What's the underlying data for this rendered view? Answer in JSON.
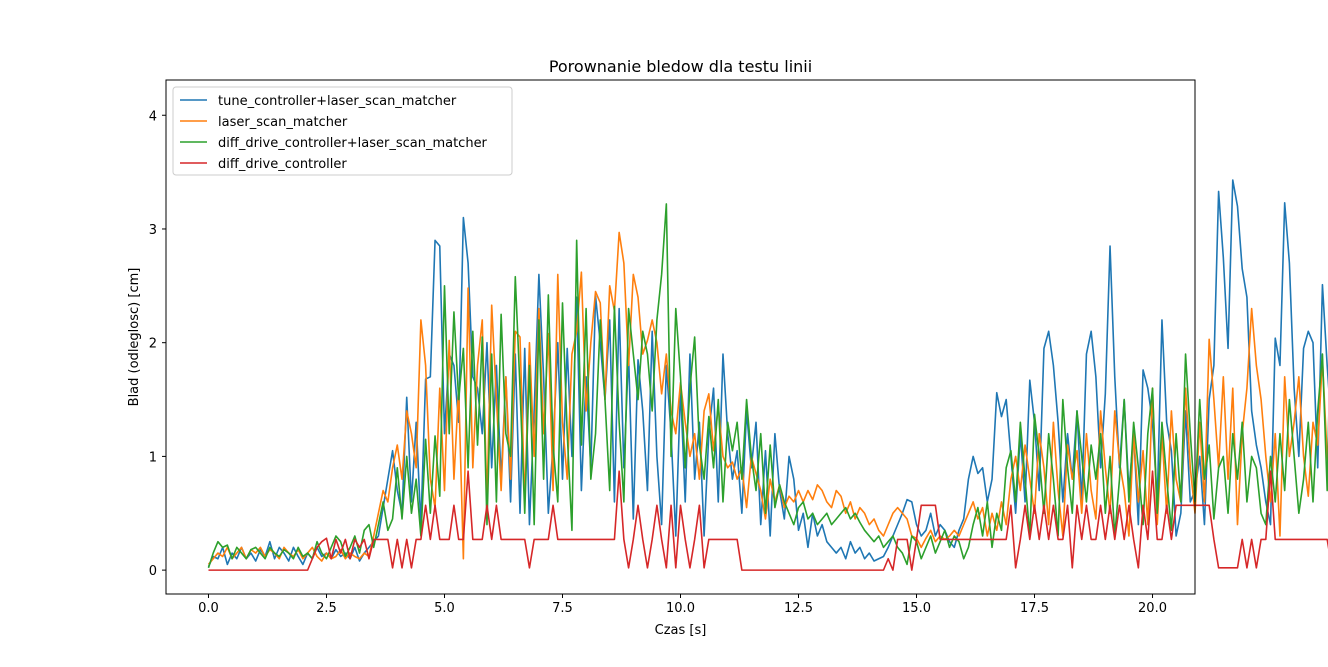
{
  "chart_data": {
    "type": "line",
    "title": "Porownanie bledow dla testu linii",
    "xlabel": "Czas [s]",
    "ylabel": "Blad (odleglosc) [cm]",
    "xlim": [
      -0.9,
      20.9
    ],
    "ylim": [
      -0.21,
      4.31
    ],
    "xticks": [
      0.0,
      2.5,
      5.0,
      7.5,
      10.0,
      12.5,
      15.0,
      17.5,
      20.0
    ],
    "xtick_labels": [
      "0.0",
      "2.5",
      "5.0",
      "7.5",
      "10.0",
      "12.5",
      "15.0",
      "17.5",
      "20.0"
    ],
    "yticks": [
      0,
      1,
      2,
      3,
      4
    ],
    "ytick_labels": [
      "0",
      "1",
      "2",
      "3",
      "4"
    ],
    "grid": false,
    "legend_position": "top-left",
    "x_start": 0.0,
    "x_step": 0.1,
    "series": [
      {
        "name": "tune_controller+laser_scan_matcher",
        "color": "#1f77b4",
        "values": [
          0.03,
          0.12,
          0.1,
          0.2,
          0.05,
          0.15,
          0.1,
          0.2,
          0.1,
          0.15,
          0.08,
          0.18,
          0.12,
          0.25,
          0.1,
          0.2,
          0.15,
          0.08,
          0.2,
          0.12,
          0.05,
          0.15,
          0.1,
          0.2,
          0.12,
          0.15,
          0.1,
          0.18,
          0.12,
          0.15,
          0.1,
          0.2,
          0.08,
          0.15,
          0.2,
          0.25,
          0.3,
          0.55,
          0.8,
          1.05,
          0.7,
          0.5,
          1.52,
          0.6,
          1.3,
          0.4,
          1.68,
          1.7,
          2.9,
          2.85,
          1.2,
          1.9,
          1.8,
          1.3,
          3.1,
          2.7,
          1.7,
          1.6,
          1.2,
          2.0,
          0.9,
          1.8,
          0.8,
          1.7,
          0.6,
          1.9,
          0.5,
          1.95,
          0.4,
          1.4,
          2.6,
          1.7,
          0.5,
          1.1,
          2.0,
          0.8,
          1.95,
          1.0,
          2.4,
          0.7,
          1.7,
          0.9,
          2.41,
          2.0,
          1.5,
          2.2,
          0.6,
          2.3,
          0.9,
          1.9,
          0.45,
          1.85,
          1.4,
          0.7,
          2.1,
          1.0,
          0.4,
          1.8,
          1.2,
          0.3,
          1.6,
          0.6,
          1.9,
          0.8,
          1.3,
          0.3,
          1.2,
          1.6,
          0.6,
          1.9,
          1.2,
          0.8,
          1.05,
          0.5,
          1.4,
          0.9,
          1.3,
          0.4,
          1.05,
          0.3,
          1.2,
          0.7,
          0.45,
          1.0,
          0.8,
          0.35,
          0.5,
          0.2,
          0.5,
          0.3,
          0.4,
          0.25,
          0.2,
          0.15,
          0.2,
          0.1,
          0.25,
          0.15,
          0.2,
          0.1,
          0.15,
          0.08,
          0.1,
          0.12,
          0.2,
          0.3,
          0.4,
          0.5,
          0.62,
          0.6,
          0.4,
          0.3,
          0.35,
          0.5,
          0.3,
          0.4,
          0.35,
          0.25,
          0.2,
          0.35,
          0.45,
          0.8,
          1.0,
          0.85,
          0.9,
          0.6,
          0.8,
          1.56,
          1.35,
          1.5,
          1.0,
          0.5,
          1.2,
          0.6,
          1.67,
          1.3,
          0.7,
          1.95,
          2.1,
          1.8,
          1.3,
          0.6,
          1.2,
          0.8,
          1.4,
          0.6,
          1.9,
          2.1,
          1.7,
          0.9,
          1.55,
          2.85,
          1.7,
          0.9,
          1.5,
          0.7,
          1.2,
          0.4,
          1.76,
          1.6,
          1.3,
          0.6,
          2.2,
          1.3,
          1.05,
          0.3,
          0.5,
          1.4,
          0.6,
          0.7,
          1.0,
          0.4,
          1.5,
          1.8,
          3.33,
          2.75,
          1.95,
          3.43,
          3.2,
          2.65,
          2.4,
          1.4,
          1.1,
          0.9,
          0.6,
          0.4,
          2.04,
          1.8,
          3.23,
          2.7,
          1.6,
          1.0,
          1.95,
          2.1,
          2.0,
          0.9,
          2.51,
          1.8,
          1.2,
          2.71,
          2.6,
          4.1,
          3.6,
          3.37,
          2.78,
          2.5,
          2.2,
          1.8,
          3.26,
          2.9,
          2.55
        ]
      },
      {
        "name": "laser_scan_matcher",
        "color": "#ff7f0e",
        "values": [
          0.05,
          0.1,
          0.15,
          0.12,
          0.2,
          0.1,
          0.15,
          0.2,
          0.1,
          0.18,
          0.15,
          0.2,
          0.12,
          0.18,
          0.15,
          0.1,
          0.2,
          0.15,
          0.12,
          0.18,
          0.1,
          0.15,
          0.2,
          0.12,
          0.08,
          0.15,
          0.1,
          0.12,
          0.18,
          0.1,
          0.15,
          0.12,
          0.1,
          0.15,
          0.12,
          0.3,
          0.5,
          0.7,
          0.6,
          0.9,
          1.1,
          0.8,
          1.4,
          1.2,
          0.9,
          2.2,
          1.8,
          0.8,
          0.55,
          1.6,
          0.7,
          2.02,
          0.8,
          1.6,
          0.1,
          2.48,
          0.9,
          1.8,
          2.2,
          0.6,
          2.33,
          1.5,
          0.7,
          1.7,
          0.8,
          2.1,
          2.05,
          0.6,
          2.0,
          1.0,
          2.3,
          1.2,
          2.08,
          0.7,
          2.6,
          1.3,
          0.8,
          1.9,
          2.1,
          2.62,
          1.4,
          2.0,
          2.45,
          2.35,
          1.5,
          2.5,
          2.28,
          2.97,
          2.7,
          1.8,
          2.6,
          2.4,
          1.9,
          2.02,
          2.2,
          2.0,
          1.55,
          1.9,
          1.4,
          1.2,
          1.65,
          1.3,
          1.0,
          1.2,
          0.8,
          1.4,
          1.55,
          1.05,
          1.44,
          1.0,
          0.9,
          0.95,
          0.8,
          0.9,
          0.55,
          1.0,
          0.85,
          0.7,
          0.45,
          0.8,
          0.6,
          0.75,
          0.55,
          0.65,
          0.6,
          0.7,
          0.6,
          0.7,
          0.62,
          0.75,
          0.7,
          0.6,
          0.55,
          0.7,
          0.65,
          0.5,
          0.6,
          0.45,
          0.55,
          0.5,
          0.4,
          0.45,
          0.35,
          0.3,
          0.4,
          0.5,
          0.55,
          0.5,
          0.45,
          0.3,
          0.28,
          0.2,
          0.28,
          0.35,
          0.25,
          0.3,
          0.27,
          0.3,
          0.35,
          0.3,
          0.4,
          0.5,
          0.6,
          0.45,
          0.55,
          0.3,
          0.5,
          0.35,
          0.6,
          0.4,
          0.8,
          1.0,
          0.7,
          1.1,
          0.8,
          0.5,
          1.2,
          0.9,
          0.4,
          1.3,
          0.7,
          0.3,
          1.1,
          0.8,
          1.05,
          0.5,
          1.2,
          0.7,
          0.45,
          1.4,
          0.9,
          0.5,
          1.4,
          0.95,
          0.7,
          0.3,
          1.2,
          0.6,
          1.05,
          0.4,
          1.6,
          0.4,
          1.2,
          0.5,
          1.4,
          0.8,
          0.6,
          1.6,
          0.9,
          0.5,
          1.3,
          0.6,
          2.03,
          1.5,
          0.9,
          1.7,
          0.8,
          1.6,
          0.4,
          1.2,
          1.6,
          2.3,
          1.8,
          1.5,
          1.0,
          0.6,
          1.2,
          0.3,
          1.7,
          1.0,
          1.3,
          1.7,
          1.0,
          0.65,
          1.3,
          1.1,
          1.85,
          1.0,
          0.6,
          1.4,
          1.8,
          0.9,
          0.6,
          2.3,
          1.5,
          1.2,
          1.0,
          0.9
        ]
      },
      {
        "name": "diff_drive_controller+laser_scan_matcher",
        "color": "#2ca02c",
        "values": [
          0.02,
          0.15,
          0.25,
          0.2,
          0.22,
          0.1,
          0.2,
          0.15,
          0.1,
          0.18,
          0.2,
          0.15,
          0.1,
          0.2,
          0.15,
          0.12,
          0.18,
          0.15,
          0.1,
          0.2,
          0.12,
          0.15,
          0.1,
          0.25,
          0.15,
          0.1,
          0.2,
          0.3,
          0.25,
          0.12,
          0.2,
          0.3,
          0.15,
          0.35,
          0.4,
          0.2,
          0.4,
          0.6,
          0.35,
          0.45,
          0.9,
          0.45,
          1.0,
          0.5,
          0.8,
          0.3,
          1.15,
          0.5,
          1.18,
          0.65,
          2.5,
          1.2,
          2.27,
          1.5,
          1.95,
          0.9,
          2.1,
          1.1,
          2.05,
          0.4,
          1.9,
          0.6,
          2.25,
          1.2,
          1.0,
          2.58,
          1.6,
          0.5,
          1.8,
          0.4,
          2.2,
          0.8,
          2.42,
          1.1,
          0.6,
          2.35,
          1.2,
          0.35,
          2.9,
          1.1,
          2.3,
          0.8,
          1.2,
          2.2,
          1.5,
          0.7,
          2.32,
          1.3,
          0.6,
          2.3,
          1.9,
          1.5,
          2.1,
          1.9,
          1.4,
          2.2,
          2.6,
          3.22,
          1.0,
          2.3,
          1.7,
          0.9,
          1.6,
          2.05,
          1.1,
          0.8,
          1.35,
          0.9,
          1.5,
          0.6,
          1.3,
          1.05,
          1.3,
          0.8,
          1.5,
          1.0,
          0.7,
          1.2,
          0.5,
          1.1,
          0.55,
          0.75,
          0.6,
          0.5,
          0.4,
          0.55,
          0.6,
          0.45,
          0.5,
          0.4,
          0.45,
          0.5,
          0.4,
          0.45,
          0.5,
          0.55,
          0.45,
          0.5,
          0.42,
          0.35,
          0.3,
          0.25,
          0.3,
          0.2,
          0.25,
          0.3,
          0.2,
          0.15,
          0.05,
          0.3,
          0.25,
          0.1,
          0.2,
          0.3,
          0.15,
          0.25,
          0.35,
          0.2,
          0.3,
          0.25,
          0.1,
          0.2,
          0.4,
          0.55,
          0.3,
          0.6,
          0.2,
          0.5,
          0.35,
          0.9,
          1.05,
          0.6,
          1.3,
          0.8,
          0.3,
          1.37,
          1.0,
          0.5,
          1.2,
          0.8,
          0.3,
          1.5,
          0.9,
          0.5,
          1.4,
          1.0,
          0.6,
          1.1,
          0.8,
          1.2,
          0.5,
          1.0,
          0.3,
          0.8,
          1.5,
          0.6,
          1.3,
          0.9,
          0.4,
          1.2,
          1.6,
          0.5,
          1.3,
          0.8,
          0.35,
          1.2,
          0.6,
          1.9,
          1.2,
          0.6,
          1.5,
          0.8,
          1.1,
          0.45,
          0.9,
          1.0,
          0.5,
          1.2,
          0.8,
          1.3,
          0.6,
          1.0,
          0.9,
          0.5,
          0.4,
          1.0,
          0.6,
          1.2,
          0.7,
          1.5,
          1.0,
          0.5,
          0.8,
          1.3,
          0.6,
          1.4,
          1.9,
          0.7,
          2.63,
          0.9,
          0.5,
          1.0,
          0.5,
          1.8,
          1.4,
          0.9,
          1.05,
          0.65,
          0.57
        ]
      },
      {
        "name": "diff_drive_controller",
        "color": "#d62728",
        "values": [
          0.0,
          0.0,
          0.0,
          0.0,
          0.0,
          0.0,
          0.0,
          0.0,
          0.0,
          0.0,
          0.0,
          0.0,
          0.0,
          0.0,
          0.0,
          0.0,
          0.0,
          0.0,
          0.0,
          0.0,
          0.0,
          0.0,
          0.1,
          0.2,
          0.25,
          0.28,
          0.1,
          0.27,
          0.15,
          0.27,
          0.1,
          0.27,
          0.2,
          0.27,
          0.1,
          0.27,
          0.27,
          0.27,
          0.27,
          0.02,
          0.27,
          0.02,
          0.27,
          0.02,
          0.27,
          0.27,
          0.57,
          0.27,
          0.57,
          0.27,
          0.27,
          0.27,
          0.57,
          0.27,
          0.27,
          0.87,
          0.27,
          0.27,
          0.27,
          0.57,
          0.27,
          0.57,
          0.27,
          0.27,
          0.27,
          0.27,
          0.27,
          0.27,
          0.02,
          0.27,
          0.27,
          0.27,
          0.27,
          0.57,
          0.27,
          0.27,
          0.27,
          0.27,
          0.27,
          0.27,
          0.27,
          0.27,
          0.27,
          0.27,
          0.27,
          0.27,
          0.27,
          0.87,
          0.27,
          0.02,
          0.27,
          0.57,
          0.27,
          0.02,
          0.27,
          0.57,
          0.27,
          0.02,
          0.57,
          0.02,
          0.57,
          0.27,
          0.02,
          0.27,
          0.57,
          0.02,
          0.27,
          0.27,
          0.27,
          0.27,
          0.27,
          0.27,
          0.27,
          0.0,
          0.0,
          0.0,
          0.0,
          0.0,
          0.0,
          0.0,
          0.0,
          0.0,
          0.0,
          0.0,
          0.0,
          0.0,
          0.0,
          0.0,
          0.0,
          0.0,
          0.0,
          0.0,
          0.0,
          0.0,
          0.0,
          0.0,
          0.0,
          0.0,
          0.0,
          0.0,
          0.0,
          0.0,
          0.0,
          0.0,
          0.1,
          0.0,
          0.27,
          0.27,
          0.27,
          0.0,
          0.27,
          0.57,
          0.57,
          0.57,
          0.57,
          0.27,
          0.27,
          0.27,
          0.27,
          0.27,
          0.27,
          0.27,
          0.27,
          0.27,
          0.27,
          0.27,
          0.27,
          0.27,
          0.27,
          0.27,
          0.57,
          0.02,
          0.27,
          0.57,
          0.27,
          0.57,
          0.27,
          0.57,
          0.27,
          0.57,
          0.27,
          0.27,
          0.57,
          0.02,
          0.57,
          0.27,
          0.57,
          0.27,
          0.27,
          0.57,
          0.27,
          0.57,
          0.27,
          0.57,
          0.27,
          0.57,
          0.27,
          0.02,
          0.57,
          0.27,
          0.87,
          0.27,
          0.27,
          0.57,
          0.27,
          0.57,
          0.57,
          0.57,
          0.57,
          0.57,
          0.57,
          0.57,
          0.57,
          0.27,
          0.02,
          0.02,
          0.02,
          0.02,
          0.02,
          0.27,
          0.02,
          0.27,
          0.02,
          0.27,
          0.27,
          0.87,
          0.27,
          0.27,
          0.27,
          0.27,
          0.27,
          0.27,
          0.27,
          0.27,
          0.27,
          0.27,
          0.27,
          0.27,
          0.02,
          0.02,
          0.27,
          0.02,
          0.02,
          0.27,
          0.02,
          0.02,
          0.02,
          0.02,
          0.02,
          0.02,
          0.57,
          0.27,
          0.27,
          0.27,
          0.27,
          0.27,
          0.27,
          0.27
        ]
      }
    ]
  }
}
